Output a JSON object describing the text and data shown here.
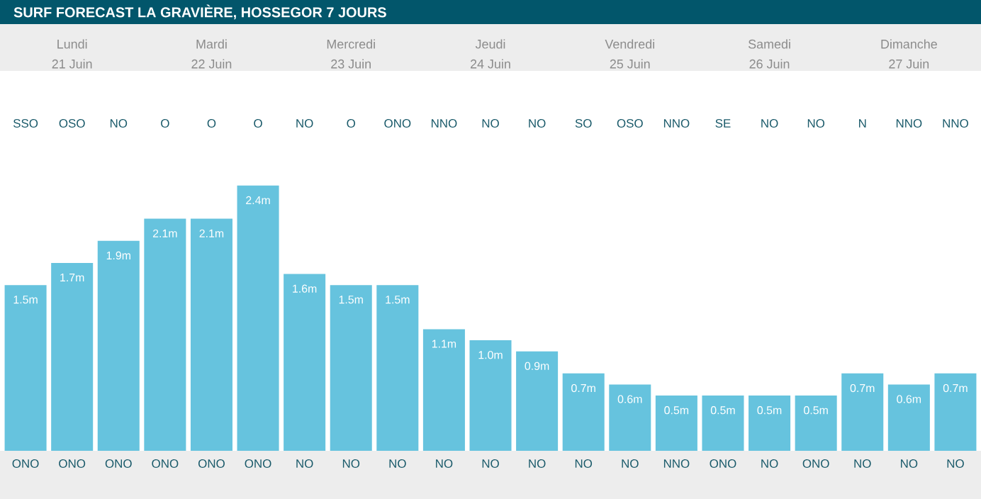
{
  "chart_data": {
    "type": "bar",
    "title": "SURF FORECAST LA GRAVIÈRE, HOSSEGOR 7 JOURS",
    "categories": [
      "ONO",
      "ONO",
      "ONO",
      "ONO",
      "ONO",
      "ONO",
      "NO",
      "NO",
      "NO",
      "NO",
      "NO",
      "NO",
      "NO",
      "NO",
      "NNO",
      "ONO",
      "NO",
      "ONO",
      "NO",
      "NO",
      "NO"
    ],
    "values": [
      1.5,
      1.7,
      1.9,
      2.1,
      2.1,
      2.4,
      1.6,
      1.5,
      1.5,
      1.1,
      1.0,
      0.9,
      0.7,
      0.6,
      0.5,
      0.5,
      0.5,
      0.5,
      0.7,
      0.6,
      0.7
    ],
    "value_labels": [
      "1.5m",
      "1.7m",
      "1.9m",
      "2.1m",
      "2.1m",
      "2.4m",
      "1.6m",
      "1.5m",
      "1.5m",
      "1.1m",
      "1.0m",
      "0.9m",
      "0.7m",
      "0.6m",
      "0.5m",
      "0.5m",
      "0.5m",
      "0.5m",
      "0.7m",
      "0.6m",
      "0.7m"
    ],
    "color": "#66c3de",
    "annotations": [
      "Lundi",
      "Mardi",
      "Mercredi",
      "Jeudi",
      "Vendredi",
      "Samedi",
      "Dimanche",
      "21 Juin",
      "22 Juin",
      "23 Juin",
      "24 Juin",
      "25 Juin",
      "26 Juin",
      "27 Juin",
      "SSO",
      "OSO",
      "NO",
      "O",
      "O",
      "O",
      "NO",
      "O",
      "ONO",
      "NNO",
      "NO",
      "NO",
      "SO",
      "OSO",
      "NNO",
      "SE",
      "NO",
      "NO",
      "N",
      "NNO",
      "NNO"
    ]
  }
}
